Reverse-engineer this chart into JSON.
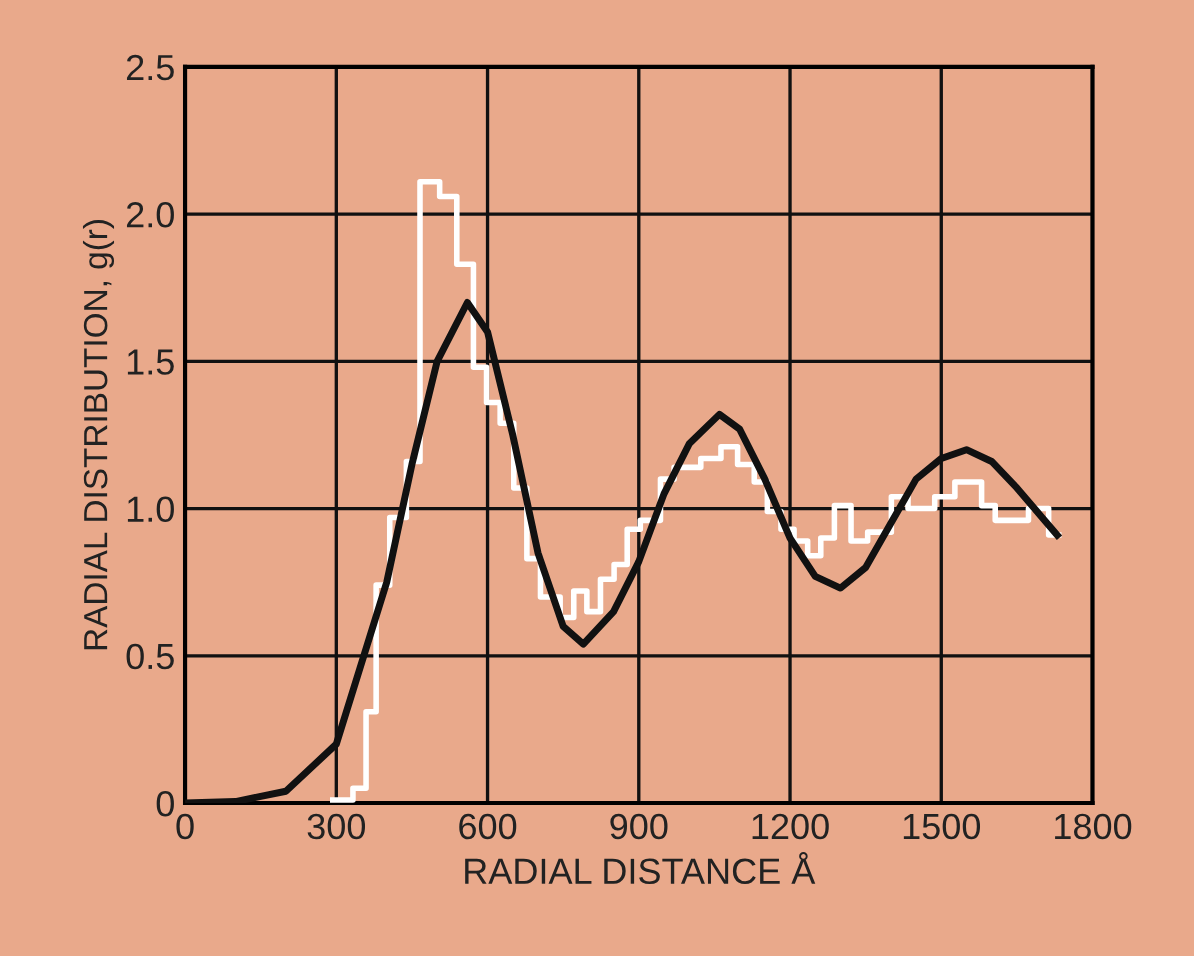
{
  "chart_data": {
    "type": "line",
    "xlabel": "RADIAL DISTANCE Å",
    "ylabel": "RADIAL DISTRIBUTION, g(r)",
    "xlim": [
      0,
      1800
    ],
    "ylim": [
      0,
      2.5
    ],
    "xticks": [
      0,
      300,
      600,
      900,
      1200,
      1500,
      1800
    ],
    "yticks": [
      0,
      0.5,
      {
        "value": 1,
        "label": "1.0"
      },
      1.5,
      {
        "value": 2,
        "label": "2.0"
      },
      2.5
    ],
    "grid": true,
    "series": [
      {
        "type": "step",
        "color": "#ffffff",
        "x": [
          293,
          333,
          359,
          379,
          406,
          439,
          466,
          505,
          539,
          572,
          598,
          625,
          652,
          678,
          705,
          744,
          771,
          797,
          824,
          851,
          877,
          903,
          943,
          970,
          1023,
          1063,
          1096,
          1129,
          1155,
          1182,
          1208,
          1235,
          1261,
          1288,
          1321,
          1354,
          1401,
          1434,
          1487,
          1527,
          1580,
          1607,
          1646,
          1673,
          1713,
          1733
        ],
        "values": [
          0.01,
          0.05,
          0.31,
          0.74,
          0.97,
          1.16,
          2.11,
          2.06,
          1.83,
          1.48,
          1.36,
          1.29,
          1.07,
          0.83,
          0.7,
          0.63,
          0.72,
          0.65,
          0.76,
          0.81,
          0.93,
          0.96,
          1.1,
          1.14,
          1.17,
          1.21,
          1.15,
          1.09,
          0.99,
          0.93,
          0.89,
          0.84,
          0.9,
          1.01,
          0.89,
          0.92,
          1.04,
          1.0,
          1.04,
          1.09,
          1.01,
          0.96,
          0.96,
          1.0,
          0.91,
          0.91
        ]
      },
      {
        "color": "#111111",
        "x": [
          0,
          100,
          200,
          300,
          400,
          450,
          500,
          560,
          600,
          650,
          700,
          750,
          790,
          850,
          900,
          950,
          1000,
          1060,
          1100,
          1150,
          1200,
          1250,
          1300,
          1350,
          1400,
          1450,
          1500,
          1550,
          1600,
          1650,
          1700,
          1730
        ],
        "values": [
          0,
          0.005,
          0.04,
          0.2,
          0.75,
          1.15,
          1.5,
          1.7,
          1.6,
          1.25,
          0.85,
          0.6,
          0.54,
          0.65,
          0.82,
          1.05,
          1.22,
          1.32,
          1.27,
          1.1,
          0.9,
          0.77,
          0.73,
          0.8,
          0.95,
          1.1,
          1.17,
          1.2,
          1.16,
          1.07,
          0.97,
          0.91
        ]
      }
    ]
  }
}
